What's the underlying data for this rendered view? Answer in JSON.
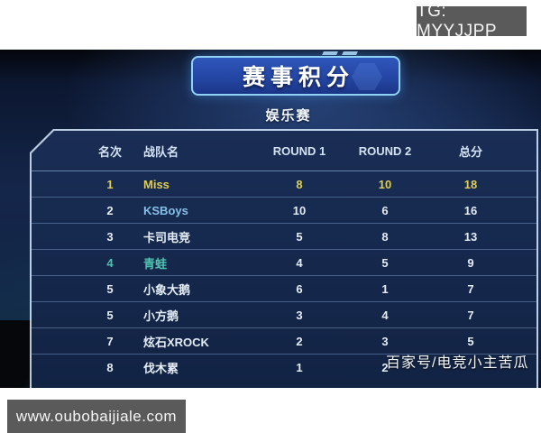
{
  "watermarks": {
    "telegram": "TG: MYYJJPP",
    "website": "www.oubobaijiale.com",
    "source_credit": "百家号/电竞小主苦瓜"
  },
  "header": {
    "title": "赛事积分",
    "subtitle": "娱乐赛"
  },
  "table": {
    "columns": [
      "名次",
      "战队名",
      "ROUND 1",
      "ROUND 2",
      "总分"
    ],
    "rows": [
      {
        "rank": "1",
        "team": "Miss",
        "r1": "8",
        "r2": "10",
        "total": "18",
        "highlight": "gold"
      },
      {
        "rank": "2",
        "team": "KSBoys",
        "r1": "10",
        "r2": "6",
        "total": "16",
        "highlight": "team-blue"
      },
      {
        "rank": "3",
        "team": "卡司电竞",
        "r1": "5",
        "r2": "8",
        "total": "13",
        "highlight": null
      },
      {
        "rank": "4",
        "team": "青蛙",
        "r1": "4",
        "r2": "5",
        "total": "9",
        "highlight": "teal"
      },
      {
        "rank": "5",
        "team": "小象大鹅",
        "r1": "6",
        "r2": "1",
        "total": "7",
        "highlight": null
      },
      {
        "rank": "5",
        "team": "小方鹅",
        "r1": "3",
        "r2": "4",
        "total": "7",
        "highlight": null
      },
      {
        "rank": "7",
        "team": "炫石XROCK",
        "r1": "2",
        "r2": "3",
        "total": "5",
        "highlight": null
      },
      {
        "rank": "8",
        "team": "伐木累",
        "r1": "1",
        "r2": "2",
        "total": "",
        "highlight": null
      }
    ]
  },
  "colors": {
    "gold_highlight": "#e0cd55",
    "team_blue": "#87c0e8",
    "teal_highlight": "#4fc2ae",
    "banner_border": "#8fd2f4",
    "panel_bg": "#16294e",
    "watermark_box_bg": "#5a5a5a"
  }
}
